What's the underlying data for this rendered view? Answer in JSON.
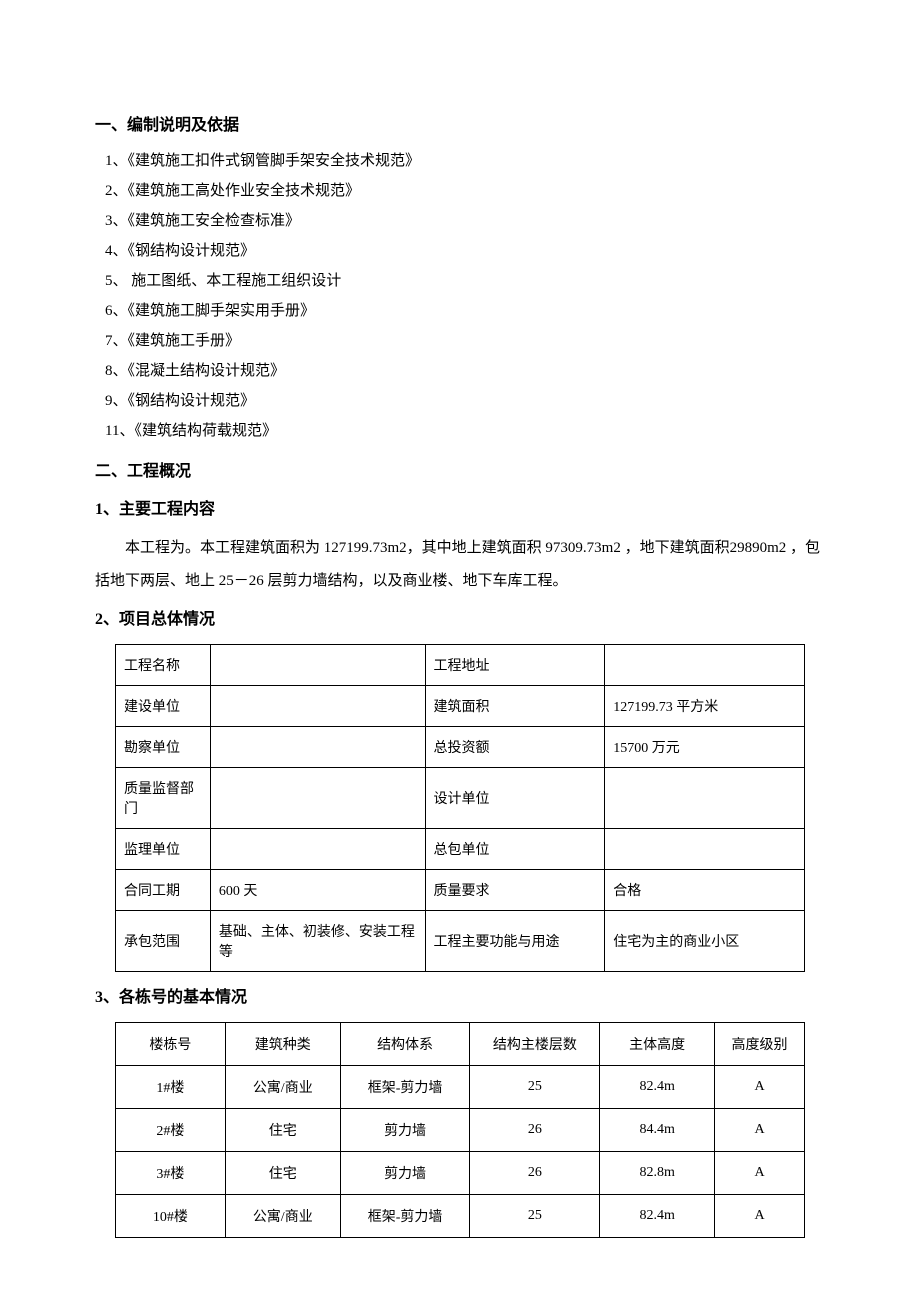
{
  "section1": {
    "title": "一、编制说明及依据",
    "items": [
      "1、《建筑施工扣件式钢管脚手架安全技术规范》",
      "2、《建筑施工高处作业安全技术规范》",
      "3、《建筑施工安全检查标准》",
      "4、《钢结构设计规范》",
      "5、  施工图纸、本工程施工组织设计",
      "6、《建筑施工脚手架实用手册》",
      "7、《建筑施工手册》",
      "8、《混凝土结构设计规范》",
      "9、《钢结构设计规范》",
      "11、《建筑结构荷载规范》"
    ]
  },
  "section2": {
    "title": "二、工程概况",
    "sub1": {
      "title": "1、主要工程内容",
      "paragraph": "本工程为。本工程建筑面积为 127199.73m2，其中地上建筑面积 97309.73m2 ，地下建筑面积29890m2 ，包括地下两层、地上 25－26 层剪力墙结构，以及商业楼、地下车库工程。"
    },
    "sub2": {
      "title": "2、项目总体情况",
      "table": {
        "rows": [
          [
            "工程名称",
            "",
            "工程地址",
            ""
          ],
          [
            "建设单位",
            "",
            "建筑面积",
            "127199.73 平方米"
          ],
          [
            "勘察单位",
            "",
            "总投资额",
            "15700 万元"
          ],
          [
            "质量监督部门",
            "",
            "设计单位",
            ""
          ],
          [
            "监理单位",
            "",
            "总包单位",
            ""
          ],
          [
            "合同工期",
            "600 天",
            "质量要求",
            "合格"
          ],
          [
            "承包范围",
            "基础、主体、初装修、安装工程等",
            "工程主要功能与用途",
            "住宅为主的商业小区"
          ]
        ]
      }
    },
    "sub3": {
      "title": "3、各栋号的基本情况",
      "table": {
        "headers": [
          "楼栋号",
          "建筑种类",
          "结构体系",
          "结构主楼层数",
          "主体高度",
          "高度级别"
        ],
        "rows": [
          [
            "1#楼",
            "公寓/商业",
            "框架-剪力墙",
            "25",
            "82.4m",
            "A"
          ],
          [
            "2#楼",
            "住宅",
            "剪力墙",
            "26",
            "84.4m",
            "A"
          ],
          [
            "3#楼",
            "住宅",
            "剪力墙",
            "26",
            "82.8m",
            "A"
          ],
          [
            "10#楼",
            "公寓/商业",
            "框架-剪力墙",
            "25",
            "82.4m",
            "A"
          ]
        ]
      }
    }
  }
}
